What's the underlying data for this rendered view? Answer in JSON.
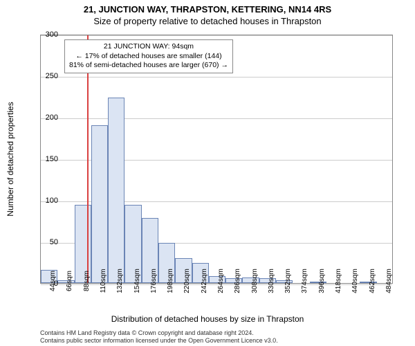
{
  "title": "21, JUNCTION WAY, THRAPSTON, KETTERING, NN14 4RS",
  "subtitle": "Size of property relative to detached houses in Thrapston",
  "ylabel": "Number of detached properties",
  "xlabel": "Distribution of detached houses by size in Thrapston",
  "footer_line1": "Contains HM Land Registry data © Crown copyright and database right 2024.",
  "footer_line2": "Contains public sector information licensed under the Open Government Licence v3.0.",
  "annotation": {
    "line1": "21 JUNCTION WAY: 94sqm",
    "line2": "← 17% of detached houses are smaller (144)",
    "line3": "81% of semi-detached houses are larger (670) →"
  },
  "chart": {
    "type": "histogram",
    "ymax": 300,
    "yticks": [
      0,
      50,
      100,
      150,
      200,
      250,
      300
    ],
    "xticks": [
      "44sqm",
      "66sqm",
      "88sqm",
      "110sqm",
      "132sqm",
      "154sqm",
      "176sqm",
      "198sqm",
      "220sqm",
      "242sqm",
      "264sqm",
      "286sqm",
      "308sqm",
      "330sqm",
      "352sqm",
      "374sqm",
      "396sqm",
      "418sqm",
      "440sqm",
      "462sqm",
      "484sqm"
    ],
    "xmin": 33,
    "xmax": 495,
    "bar_width_sqm": 22,
    "bars": [
      {
        "x": 44,
        "y": 16
      },
      {
        "x": 66,
        "y": 3
      },
      {
        "x": 88,
        "y": 94
      },
      {
        "x": 110,
        "y": 190
      },
      {
        "x": 132,
        "y": 223
      },
      {
        "x": 154,
        "y": 94
      },
      {
        "x": 176,
        "y": 78
      },
      {
        "x": 198,
        "y": 48
      },
      {
        "x": 220,
        "y": 30
      },
      {
        "x": 242,
        "y": 24
      },
      {
        "x": 264,
        "y": 8
      },
      {
        "x": 286,
        "y": 6
      },
      {
        "x": 308,
        "y": 7
      },
      {
        "x": 330,
        "y": 6
      },
      {
        "x": 352,
        "y": 3
      },
      {
        "x": 374,
        "y": 0
      },
      {
        "x": 396,
        "y": 2
      },
      {
        "x": 418,
        "y": 0
      },
      {
        "x": 440,
        "y": 0
      },
      {
        "x": 462,
        "y": 1
      },
      {
        "x": 484,
        "y": 0
      }
    ],
    "marker_x": 94,
    "bar_fill": "#dbe4f3",
    "bar_stroke": "#6a84b5",
    "marker_color": "#d94040",
    "grid_color": "#cccccc",
    "background": "#ffffff",
    "title_fontsize": 13,
    "label_fontsize": 12,
    "tick_fontsize": 11
  }
}
